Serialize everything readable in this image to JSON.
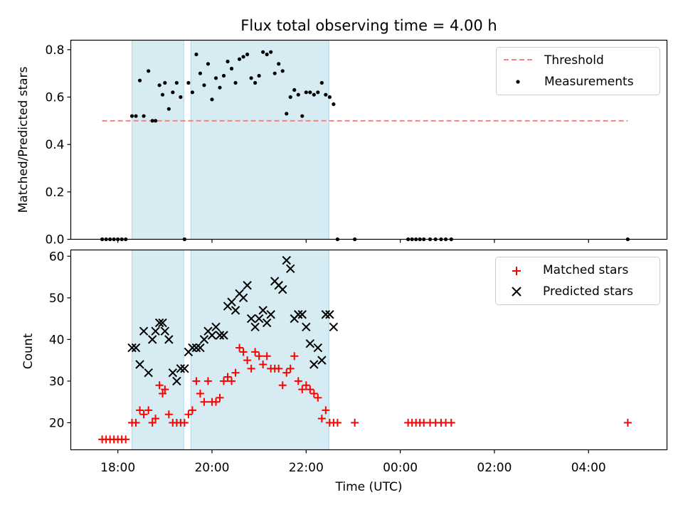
{
  "title": "Flux total observing time = 4.00 h",
  "colors": {
    "threshold": "#ff7f7f",
    "shade": "#add8e6",
    "matched": "#ff0000",
    "predicted": "#000000",
    "measurement": "#000000"
  },
  "chart_data": [
    {
      "type": "scatter",
      "panel": "top",
      "ylabel": "Matched/Predicted stars",
      "xlabel": "",
      "xlim": [
        "17:00",
        "05:40"
      ],
      "ylim": [
        0,
        0.84
      ],
      "yticks": [
        "0.0",
        "0.2",
        "0.4",
        "0.6",
        "0.8"
      ],
      "ytick_values": [
        0,
        0.2,
        0.4,
        0.6,
        0.8
      ],
      "xticks": [
        "18:00",
        "20:00",
        "22:00",
        "00:00",
        "02:00",
        "04:00"
      ],
      "shaded_intervals": [
        [
          "18:18",
          "19:24"
        ],
        [
          "19:33",
          "22:29"
        ]
      ],
      "legend": {
        "position": "top-right",
        "entries": [
          "Threshold",
          "Measurements"
        ]
      },
      "threshold": {
        "name": "Threshold",
        "value": 0.5,
        "x_range": [
          "17:40",
          "04:50"
        ]
      },
      "measurements": {
        "name": "Measurements",
        "x": [
          "17:40",
          "17:45",
          "17:50",
          "17:55",
          "18:00",
          "18:05",
          "18:10",
          "18:18",
          "18:23",
          "18:28",
          "18:33",
          "18:39",
          "18:44",
          "18:48",
          "18:53",
          "18:57",
          "19:00",
          "19:05",
          "19:10",
          "19:15",
          "19:20",
          "19:25",
          "19:30",
          "19:35",
          "19:40",
          "19:45",
          "19:50",
          "19:55",
          "20:00",
          "20:05",
          "20:10",
          "20:15",
          "20:20",
          "20:25",
          "20:30",
          "20:35",
          "20:40",
          "20:45",
          "20:50",
          "20:55",
          "21:00",
          "21:05",
          "21:10",
          "21:15",
          "21:20",
          "21:25",
          "21:30",
          "21:35",
          "21:40",
          "21:45",
          "21:50",
          "21:55",
          "22:00",
          "22:05",
          "22:10",
          "22:15",
          "22:20",
          "22:25",
          "22:30",
          "22:35",
          "22:40",
          "23:02",
          "00:10",
          "00:15",
          "00:20",
          "00:25",
          "00:30",
          "00:38",
          "00:45",
          "00:52",
          "00:58",
          "01:05",
          "04:50"
        ],
        "y": [
          0,
          0,
          0,
          0,
          0,
          0,
          0,
          0.52,
          0.52,
          0.67,
          0.52,
          0.71,
          0.5,
          0.5,
          0.65,
          0.61,
          0.66,
          0.55,
          0.62,
          0.66,
          0.6,
          0,
          0.66,
          0.62,
          0.78,
          0.7,
          0.65,
          0.74,
          0.59,
          0.68,
          0.64,
          0.69,
          0.75,
          0.72,
          0.66,
          0.76,
          0.77,
          0.78,
          0.68,
          0.66,
          0.69,
          0.79,
          0.78,
          0.79,
          0.7,
          0.74,
          0.71,
          0.53,
          0.6,
          0.63,
          0.61,
          0.52,
          0.62,
          0.62,
          0.61,
          0.62,
          0.66,
          0.61,
          0.6,
          0.57,
          0,
          0,
          0,
          0,
          0,
          0,
          0,
          0,
          0,
          0,
          0,
          0,
          0
        ]
      }
    },
    {
      "type": "scatter",
      "panel": "bottom",
      "xlabel": "Time (UTC)",
      "ylabel": "Count",
      "xlim": [
        "17:00",
        "05:40"
      ],
      "ylim": [
        13.5,
        61.5
      ],
      "yticks": [
        "20",
        "30",
        "40",
        "50",
        "60"
      ],
      "ytick_values": [
        20,
        30,
        40,
        50,
        60
      ],
      "xticks": [
        "18:00",
        "20:00",
        "22:00",
        "00:00",
        "02:00",
        "04:00"
      ],
      "shaded_intervals": [
        [
          "18:18",
          "19:24"
        ],
        [
          "19:33",
          "22:29"
        ]
      ],
      "legend": {
        "position": "top-right",
        "entries": [
          "Matched stars",
          "Predicted stars"
        ]
      },
      "series": [
        {
          "name": "Matched stars",
          "marker": "plus",
          "x": [
            "17:40",
            "17:45",
            "17:50",
            "17:55",
            "18:00",
            "18:05",
            "18:10",
            "18:18",
            "18:23",
            "18:28",
            "18:33",
            "18:39",
            "18:44",
            "18:48",
            "18:53",
            "18:57",
            "19:00",
            "19:05",
            "19:10",
            "19:15",
            "19:20",
            "19:25",
            "19:30",
            "19:35",
            "19:40",
            "19:45",
            "19:50",
            "19:55",
            "20:00",
            "20:05",
            "20:10",
            "20:15",
            "20:20",
            "20:25",
            "20:30",
            "20:35",
            "20:40",
            "20:45",
            "20:50",
            "20:55",
            "21:00",
            "21:05",
            "21:10",
            "21:15",
            "21:20",
            "21:25",
            "21:30",
            "21:35",
            "21:40",
            "21:45",
            "21:50",
            "21:55",
            "22:00",
            "22:05",
            "22:10",
            "22:15",
            "22:20",
            "22:25",
            "22:30",
            "22:35",
            "22:40",
            "23:02",
            "00:10",
            "00:15",
            "00:20",
            "00:25",
            "00:30",
            "00:38",
            "00:45",
            "00:52",
            "00:58",
            "01:05",
            "04:50"
          ],
          "y": [
            16,
            16,
            16,
            16,
            16,
            16,
            16,
            20,
            20,
            23,
            22,
            23,
            20,
            21,
            29,
            27,
            28,
            22,
            20,
            20,
            20,
            20,
            22,
            23,
            30,
            27,
            25,
            30,
            25,
            25,
            26,
            30,
            31,
            30,
            32,
            38,
            37,
            35,
            33,
            37,
            36,
            34,
            36,
            33,
            33,
            33,
            29,
            32,
            33,
            36,
            30,
            28,
            29,
            28,
            27,
            26,
            21,
            23,
            20,
            20,
            20,
            20,
            20,
            20,
            20,
            20,
            20,
            20,
            20,
            20,
            20,
            20,
            20
          ]
        },
        {
          "name": "Predicted stars",
          "marker": "x",
          "x": [
            "18:18",
            "18:23",
            "18:28",
            "18:33",
            "18:39",
            "18:44",
            "18:48",
            "18:53",
            "18:57",
            "19:00",
            "19:05",
            "19:10",
            "19:15",
            "19:20",
            "19:25",
            "19:30",
            "19:35",
            "19:40",
            "19:45",
            "19:50",
            "19:55",
            "20:00",
            "20:05",
            "20:10",
            "20:15",
            "20:20",
            "20:25",
            "20:30",
            "20:35",
            "20:40",
            "20:45",
            "20:50",
            "20:55",
            "21:00",
            "21:05",
            "21:10",
            "21:15",
            "21:20",
            "21:25",
            "21:30",
            "21:35",
            "21:40",
            "21:45",
            "21:50",
            "21:55",
            "22:00",
            "22:05",
            "22:10",
            "22:15",
            "22:20",
            "22:25",
            "22:30",
            "22:35"
          ],
          "y": [
            38,
            38,
            34,
            42,
            32,
            40,
            42,
            44,
            44,
            42,
            40,
            32,
            30,
            33,
            33,
            37,
            38,
            38,
            38,
            40,
            42,
            41,
            43,
            41,
            41,
            48,
            49,
            47,
            51,
            50,
            53,
            45,
            43,
            45,
            47,
            44,
            46,
            54,
            53,
            52,
            59,
            57,
            45,
            46,
            46,
            43,
            39,
            34,
            38,
            35,
            46,
            46,
            43
          ]
        }
      ]
    }
  ]
}
